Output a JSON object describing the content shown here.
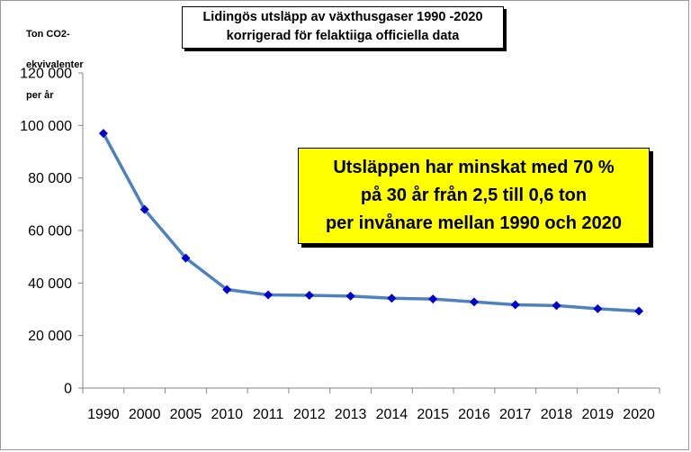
{
  "title_lines": [
    "Lidingös utsläpp av växthusgaser  1990 -2020",
    "korrigerad för felaktiiga officiella data"
  ],
  "ylabel_lines": [
    "Ton CO2-",
    "ekvivalenter",
    "per  år"
  ],
  "annotation_lines": [
    "Utsläppen har minskat med 70 %",
    "på 30 år från 2,5 till 0,6 ton",
    "per invånare mellan 1990 och 2020"
  ],
  "chart_data": {
    "type": "line",
    "title": "Lidingös utsläpp av växthusgaser  1990 -2020 korrigerad för felaktiiga officiella data",
    "ylabel": "Ton CO2- ekvivalenter per  år",
    "xlabel": "",
    "categories": [
      "1990",
      "2000",
      "2005",
      "2010",
      "2011",
      "2012",
      "2013",
      "2014",
      "2015",
      "2016",
      "2017",
      "2018",
      "2019",
      "2020"
    ],
    "series": [
      {
        "values": [
          97000,
          68000,
          49500,
          37500,
          35500,
          35300,
          35000,
          34200,
          33900,
          32800,
          31700,
          31400,
          30200,
          29300
        ]
      }
    ],
    "ylim": [
      0,
      120000
    ],
    "yticks": [
      0,
      20000,
      40000,
      60000,
      80000,
      100000,
      120000
    ],
    "ytick_labels": [
      "0",
      "20 000",
      "40 000",
      "60 000",
      "80 000",
      "100 000",
      "120 000"
    ],
    "grid": false,
    "line_color": "#4f81bd",
    "marker_color": "#0000cc",
    "annotation_color": "#ffff00"
  }
}
